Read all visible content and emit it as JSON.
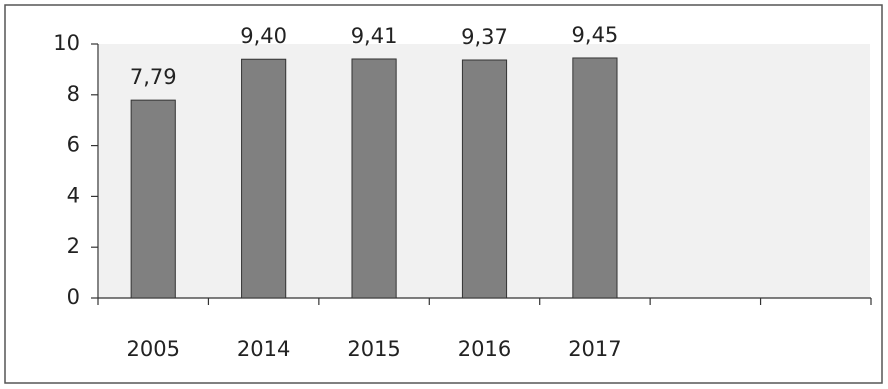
{
  "chart_data": {
    "type": "bar",
    "categories": [
      "2005",
      "2014",
      "2015",
      "2016",
      "2017",
      null,
      null
    ],
    "values": [
      7.79,
      9.4,
      9.41,
      9.37,
      9.45,
      null,
      null
    ],
    "value_labels": [
      "7,79",
      "9,40",
      "9,41",
      "9,37",
      "9,45",
      null,
      null
    ],
    "color": "#808080",
    "ylim": [
      0,
      10
    ],
    "yticks": [
      0,
      2,
      4,
      6,
      8,
      10
    ],
    "grid": false
  }
}
